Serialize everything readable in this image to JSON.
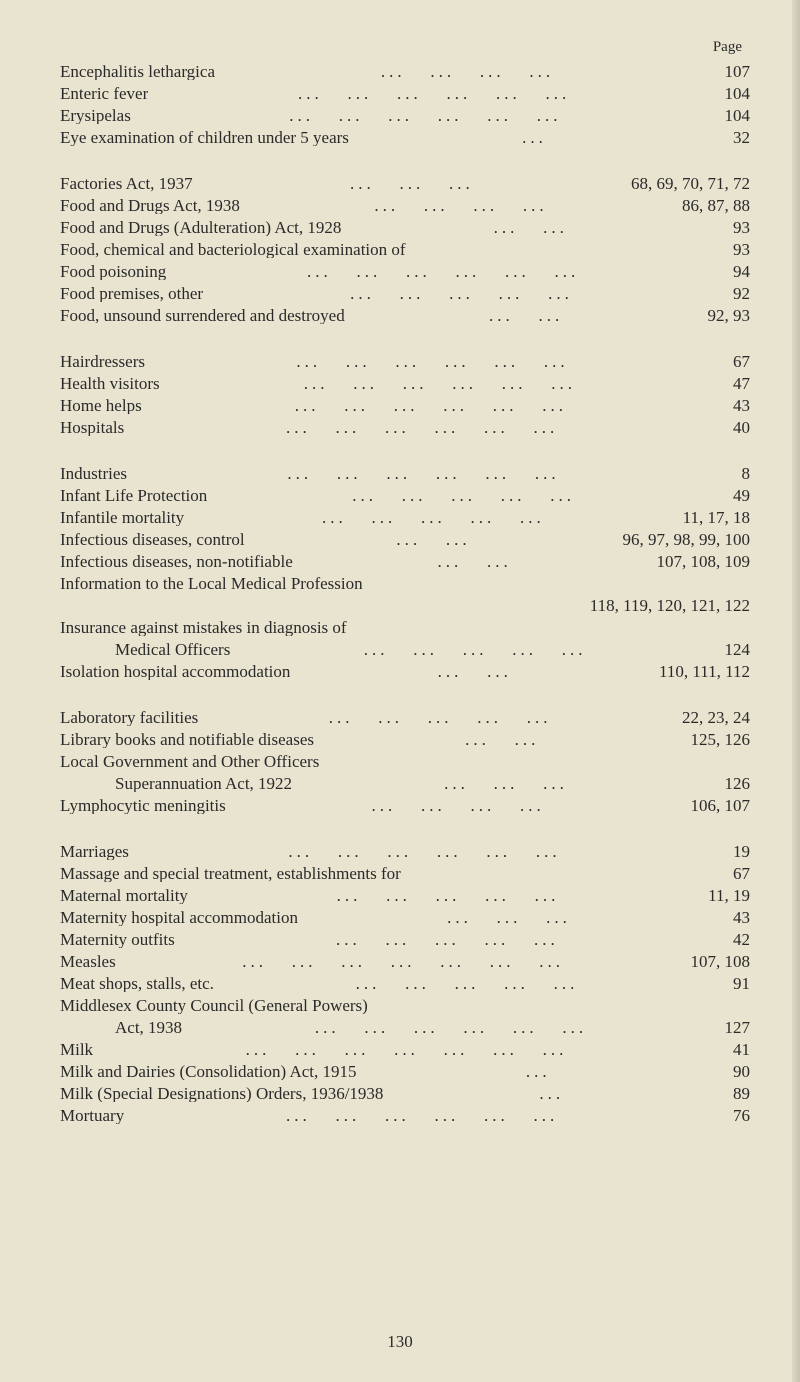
{
  "header": "Page",
  "pageNumber": "130",
  "sections": [
    {
      "entries": [
        {
          "label": "Encephalitis lethargica",
          "dots": "...   ...   ...   ...",
          "pages": "107"
        },
        {
          "label": "Enteric fever",
          "dots": "...   ...   ...   ...   ...   ...",
          "pages": "104"
        },
        {
          "label": "Erysipelas",
          "dots": "...   ...   ...   ...   ...   ...",
          "pages": "104"
        },
        {
          "label": "Eye examination of children under 5 years",
          "dots": "...",
          "pages": "32"
        }
      ]
    },
    {
      "entries": [
        {
          "label": "Factories Act, 1937",
          "dots": "...   ...   ...",
          "pages": "68, 69, 70, 71, 72"
        },
        {
          "label": "Food and Drugs Act, 1938",
          "dots": "...   ...   ...   ...",
          "pages": "86, 87, 88"
        },
        {
          "label": "Food and Drugs (Adulteration) Act, 1928",
          "dots": "...   ...",
          "pages": "93"
        },
        {
          "label": "Food, chemical and bacteriological examination of",
          "dots": "",
          "pages": "93"
        },
        {
          "label": "Food poisoning",
          "dots": "...   ...   ...   ...   ...   ...",
          "pages": "94"
        },
        {
          "label": "Food premises, other",
          "dots": "...   ...   ...   ...   ...",
          "pages": "92"
        },
        {
          "label": "Food, unsound surrendered and destroyed",
          "dots": "...   ...",
          "pages": "92, 93"
        }
      ]
    },
    {
      "entries": [
        {
          "label": "Hairdressers",
          "dots": "...   ...   ...   ...   ...   ...",
          "pages": "67"
        },
        {
          "label": "Health visitors",
          "dots": "...   ...   ...   ...   ...   ...",
          "pages": "47"
        },
        {
          "label": "Home helps",
          "dots": "...   ...   ...   ...   ...   ...",
          "pages": "43"
        },
        {
          "label": "Hospitals",
          "dots": "...   ...   ...   ...   ...   ...",
          "pages": "40"
        }
      ]
    },
    {
      "entries": [
        {
          "label": "Industries",
          "dots": "...   ...   ...   ...   ...   ...",
          "pages": "8"
        },
        {
          "label": "Infant Life Protection",
          "dots": "...   ...   ...   ...   ...",
          "pages": "49"
        },
        {
          "label": "Infantile mortality",
          "dots": "...   ...   ...   ...   ...",
          "pages": "11, 17, 18"
        },
        {
          "label": "Infectious diseases, control",
          "dots": "...   ...",
          "pages": "96, 97, 98, 99, 100"
        },
        {
          "label": "Infectious diseases, non-notifiable",
          "dots": "...   ...",
          "pages": "107, 108, 109"
        },
        {
          "label": "Information to the Local Medical Profession",
          "dots": "",
          "pages": ""
        },
        {
          "subline": true,
          "pages": "118, 119, 120, 121, 122"
        },
        {
          "label": "Insurance against mistakes in diagnosis of",
          "dots": "",
          "pages": ""
        },
        {
          "indent": true,
          "label": "Medical Officers",
          "dots": "...   ...   ...   ...   ...",
          "pages": "124"
        },
        {
          "label": "Isolation hospital accommodation",
          "dots": "...   ...",
          "pages": "110, 111, 112"
        }
      ]
    },
    {
      "entries": [
        {
          "label": "Laboratory facilities",
          "dots": "...   ...   ...   ...   ...",
          "pages": "22, 23, 24"
        },
        {
          "label": "Library books and notifiable diseases",
          "dots": "...   ...",
          "pages": "125, 126"
        },
        {
          "label": "Local Government and Other Officers",
          "dots": "",
          "pages": ""
        },
        {
          "indent": true,
          "label": "Superannuation Act, 1922",
          "dots": "...   ...   ...",
          "pages": "126"
        },
        {
          "label": "Lymphocytic meningitis",
          "dots": "...   ...   ...   ...",
          "pages": "106, 107"
        }
      ]
    },
    {
      "entries": [
        {
          "label": "Marriages",
          "dots": "...   ...   ...   ...   ...   ...",
          "pages": "19"
        },
        {
          "label": "Massage and special treatment, establishments for",
          "dots": "",
          "pages": "67"
        },
        {
          "label": "Maternal mortality",
          "dots": "...   ...   ...   ...   ...",
          "pages": "11, 19"
        },
        {
          "label": "Maternity hospital accommodation",
          "dots": "...   ...   ...",
          "pages": "43"
        },
        {
          "label": "Maternity outfits",
          "dots": "...   ...   ...   ...   ...",
          "pages": "42"
        },
        {
          "label": "Measles",
          "dots": "...   ...   ...   ...   ...   ...   ...",
          "pages": "107, 108"
        },
        {
          "label": "Meat shops, stalls, etc.",
          "dots": "...   ...   ...   ...   ...",
          "pages": "91"
        },
        {
          "label": "Middlesex County Council (General Powers)",
          "dots": "",
          "pages": ""
        },
        {
          "indent": true,
          "label": "Act, 1938",
          "dots": "...   ...   ...   ...   ...   ...",
          "pages": "127"
        },
        {
          "label": "Milk",
          "dots": "...   ...   ...   ...   ...   ...   ...",
          "pages": "41"
        },
        {
          "label": "Milk and Dairies (Consolidation) Act, 1915",
          "dots": "...",
          "pages": "90"
        },
        {
          "label": "Milk (Special Designations) Orders, 1936/1938",
          "dots": "...",
          "pages": "89"
        },
        {
          "label": "Mortuary",
          "dots": "...   ...   ...   ...   ...   ...",
          "pages": "76"
        }
      ]
    }
  ]
}
